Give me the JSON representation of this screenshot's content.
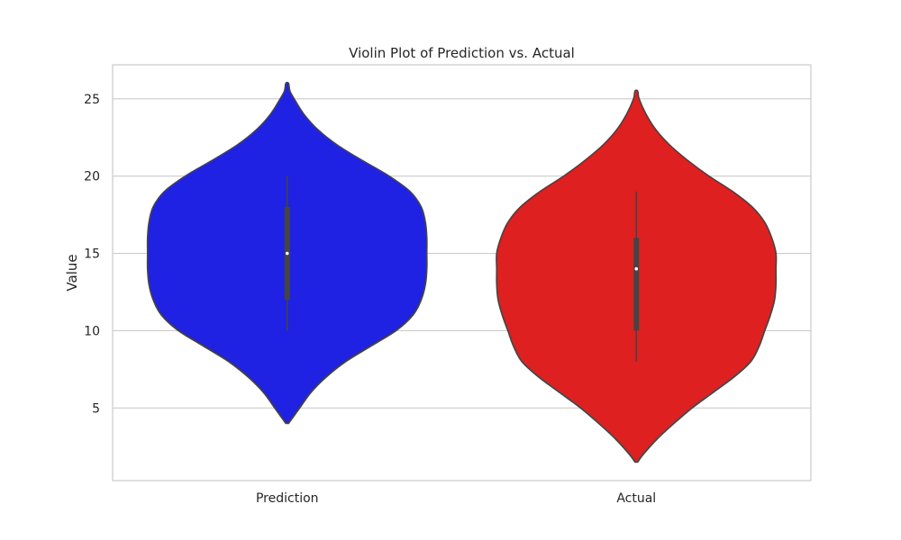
{
  "chart_data": {
    "type": "violin",
    "title": "Violin Plot of Prediction vs. Actual",
    "xlabel": "",
    "ylabel": "Value",
    "ylim": [
      0.3,
      27.2
    ],
    "yticks": [
      5,
      10,
      15,
      20,
      25
    ],
    "grid": true,
    "grid_axis": "y",
    "categories": [
      "Prediction",
      "Actual"
    ],
    "series": [
      {
        "category": "Prediction",
        "color": "#1f22e3",
        "range": [
          4,
          26
        ],
        "quartiles": [
          12,
          15,
          18
        ],
        "whiskers": [
          10,
          20
        ],
        "density_profile": [
          [
            4,
            0.01
          ],
          [
            4.5,
            0.05
          ],
          [
            5,
            0.09
          ],
          [
            6,
            0.17
          ],
          [
            7,
            0.28
          ],
          [
            8,
            0.42
          ],
          [
            9,
            0.6
          ],
          [
            10,
            0.78
          ],
          [
            11,
            0.9
          ],
          [
            12,
            0.96
          ],
          [
            13,
            0.99
          ],
          [
            14,
            1.0
          ],
          [
            15,
            1.0
          ],
          [
            16,
            1.0
          ],
          [
            17,
            0.99
          ],
          [
            18,
            0.96
          ],
          [
            19,
            0.88
          ],
          [
            20,
            0.73
          ],
          [
            21,
            0.54
          ],
          [
            22,
            0.36
          ],
          [
            23,
            0.22
          ],
          [
            24,
            0.12
          ],
          [
            25,
            0.05
          ],
          [
            25.5,
            0.02
          ],
          [
            26,
            0.01
          ]
        ]
      },
      {
        "category": "Actual",
        "color": "#de2020",
        "range": [
          1.5,
          25.5
        ],
        "quartiles": [
          10,
          14,
          16
        ],
        "whiskers": [
          8,
          19
        ],
        "density_profile": [
          [
            1.5,
            0.01
          ],
          [
            2,
            0.05
          ],
          [
            3,
            0.15
          ],
          [
            4,
            0.27
          ],
          [
            5,
            0.4
          ],
          [
            6,
            0.55
          ],
          [
            7,
            0.7
          ],
          [
            8,
            0.82
          ],
          [
            9,
            0.88
          ],
          [
            10,
            0.92
          ],
          [
            11,
            0.96
          ],
          [
            12,
            0.99
          ],
          [
            13,
            1.0
          ],
          [
            14,
            1.0
          ],
          [
            15,
            1.0
          ],
          [
            16,
            0.97
          ],
          [
            17,
            0.92
          ],
          [
            18,
            0.83
          ],
          [
            19,
            0.69
          ],
          [
            20,
            0.52
          ],
          [
            21,
            0.37
          ],
          [
            22,
            0.24
          ],
          [
            23,
            0.14
          ],
          [
            24,
            0.07
          ],
          [
            25,
            0.02
          ],
          [
            25.5,
            0.01
          ]
        ]
      }
    ]
  }
}
